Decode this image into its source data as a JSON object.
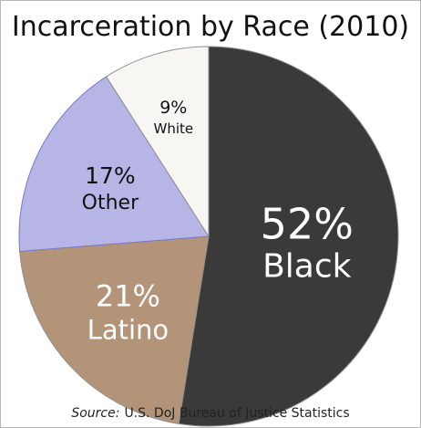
{
  "chart_data": {
    "type": "pie",
    "title": "Incarceration by Race (2010)",
    "slices": [
      {
        "name": "Black",
        "label": "52%",
        "value": 52,
        "color": "#3a3a3a",
        "text_color": "#ffffff"
      },
      {
        "name": "Latino",
        "label": "21%",
        "value": 21,
        "color": "#b49478",
        "text_color": "#ffffff"
      },
      {
        "name": "Other",
        "label": "17%",
        "value": 17,
        "color": "#b7b5e6",
        "text_color": "#111111"
      },
      {
        "name": "White",
        "label": "9%",
        "value": 9,
        "color": "#f8f6f3",
        "text_color": "#111111"
      }
    ],
    "source": {
      "prefix": "Source:",
      "text": "U.S. DoJ Bureau of Justice Statistics"
    }
  }
}
